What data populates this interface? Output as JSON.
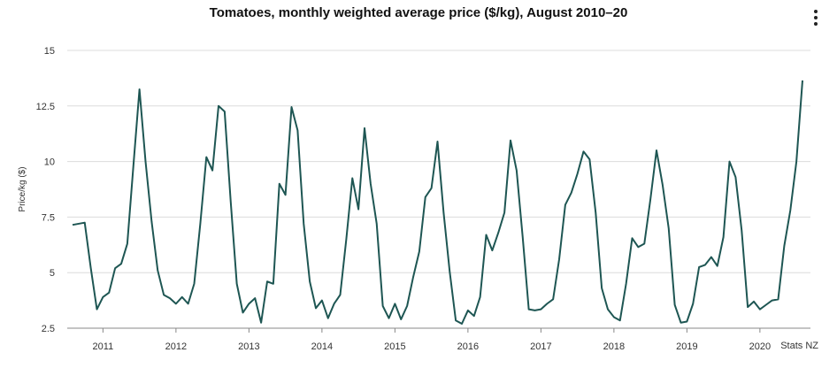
{
  "chart_data": {
    "type": "line",
    "title": "Tomatoes, monthly weighted average price ($/kg), August 2010–20",
    "xlabel": "",
    "ylabel": "Price/kg ($)",
    "source": "Stats NZ",
    "ylim": [
      2.5,
      15
    ],
    "yticks": [
      "2.5",
      "5",
      "7.5",
      "10",
      "12.5",
      "15"
    ],
    "ytick_values": [
      2.5,
      5,
      7.5,
      10,
      12.5,
      15
    ],
    "xtick_labels": [
      "2011",
      "2012",
      "2013",
      "2014",
      "2015",
      "2016",
      "2017",
      "2018",
      "2019",
      "2020"
    ],
    "x_start": "2010-08",
    "x_end": "2020-08",
    "grid": true,
    "line_color": "#1e5653",
    "series": [
      {
        "name": "",
        "values": [
          7.15,
          7.2,
          7.25,
          5.2,
          3.35,
          3.9,
          4.1,
          5.2,
          5.4,
          6.3,
          9.8,
          13.25,
          10.0,
          7.3,
          5.1,
          4.0,
          3.85,
          3.6,
          3.9,
          3.6,
          4.5,
          7.2,
          10.2,
          9.6,
          12.5,
          12.25,
          8.2,
          4.5,
          3.2,
          3.6,
          3.85,
          2.75,
          4.6,
          4.5,
          9.0,
          8.5,
          12.45,
          11.4,
          7.2,
          4.6,
          3.4,
          3.75,
          2.95,
          3.6,
          4.0,
          6.5,
          9.25,
          7.85,
          11.5,
          9.0,
          7.2,
          3.5,
          2.95,
          3.6,
          2.9,
          3.5,
          4.8,
          5.95,
          8.4,
          8.8,
          10.9,
          7.7,
          5.05,
          2.85,
          2.7,
          3.3,
          3.05,
          3.9,
          6.7,
          6.0,
          6.8,
          7.7,
          10.95,
          9.6,
          6.6,
          3.35,
          3.3,
          3.35,
          3.6,
          3.8,
          5.6,
          8.05,
          8.6,
          9.45,
          10.45,
          10.1,
          7.7,
          4.3,
          3.35,
          3.0,
          2.85,
          4.5,
          6.55,
          6.15,
          6.3,
          8.3,
          10.5,
          8.95,
          7.0,
          3.55,
          2.75,
          2.8,
          3.6,
          5.25,
          5.35,
          5.7,
          5.3,
          6.6,
          10.0,
          9.3,
          6.9,
          3.45,
          3.7,
          3.35,
          3.55,
          3.75,
          3.8,
          6.2,
          7.8,
          10.0,
          13.65
        ]
      }
    ]
  }
}
